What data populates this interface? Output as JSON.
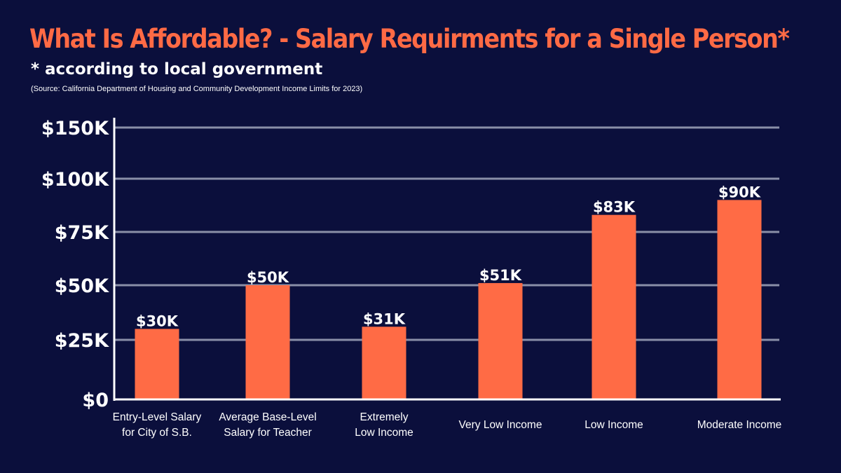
{
  "header": {
    "title": "What Is Affordable? - Salary Requirments for a Single Person*",
    "subtitle": "* according to local government",
    "source": "(Source: California Department of Housing and Community Development Income Limits for 2023)"
  },
  "chart_data": {
    "type": "bar",
    "categories": [
      [
        "Entry-Level Salary",
        "for City of S.B."
      ],
      [
        "Average Base-Level",
        "Salary for Teacher"
      ],
      [
        "Extremely",
        "Low Income"
      ],
      [
        "Very Low Income"
      ],
      [
        "Low Income"
      ],
      [
        "Moderate Income"
      ]
    ],
    "values": [
      30,
      50,
      31,
      51,
      83,
      90
    ],
    "data_labels": [
      "$30K",
      "$50K",
      "$31K",
      "$51K",
      "$83K",
      "$90K"
    ],
    "yticks": [
      {
        "value": 0,
        "label": "$0"
      },
      {
        "value": 25,
        "label": "$25K"
      },
      {
        "value": 50,
        "label": "$50K"
      },
      {
        "value": 75,
        "label": "$75K"
      },
      {
        "value": 100,
        "label": "$100K"
      },
      {
        "value": 150,
        "label": "$150K"
      }
    ],
    "ylim": [
      0,
      150
    ],
    "grid": true,
    "colors": {
      "bar": "#ff6b45",
      "grid": "#8a8fa8",
      "axis": "#ffffff",
      "background": "#0b0f3c"
    }
  }
}
